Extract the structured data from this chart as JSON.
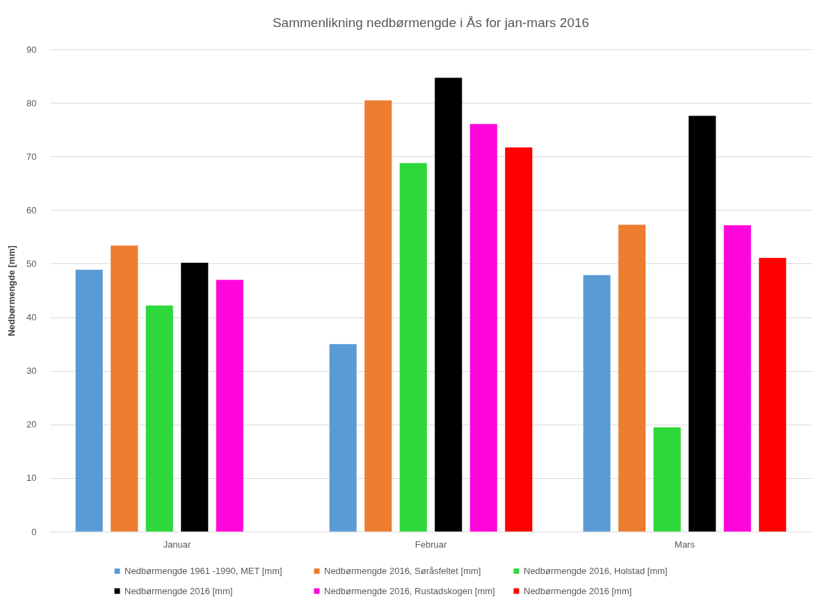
{
  "chart_data": {
    "type": "bar",
    "title": "Sammenlikning nedbørmengde i Ås for jan-mars 2016",
    "ylabel": "Nedbørmengde [mm]",
    "categories": [
      "Januar",
      "Februar",
      "Mars"
    ],
    "series": [
      {
        "name": "Nedbørmengde 1961 -1990, MET [mm]",
        "color": "#5b9bd5",
        "values": [
          48.9,
          35.0,
          47.9
        ]
      },
      {
        "name": "Nedbørmengde 2016, Søråsfeltet [mm]",
        "color": "#ed7d31",
        "values": [
          53.4,
          80.5,
          57.3
        ]
      },
      {
        "name": "Nedbørmengde 2016, Holstad [mm]",
        "color": "#2cd83a",
        "values": [
          42.2,
          68.8,
          19.5
        ]
      },
      {
        "name": "Nedbørmengde 2016 [mm]",
        "color": "#000000",
        "values": [
          50.2,
          84.7,
          77.6
        ]
      },
      {
        "name": "Nedbørmengde 2016, Rustadskogen [mm]",
        "color": "#ff07dc",
        "values": [
          47.0,
          76.1,
          57.2
        ]
      },
      {
        "name": "Nedbørmengde 2016 [mm]",
        "color": "#ff0000",
        "values": [
          null,
          71.7,
          51.1
        ]
      }
    ],
    "ylim": [
      0,
      90
    ],
    "yticks": [
      0,
      10,
      20,
      30,
      40,
      50,
      60,
      70,
      80,
      90
    ],
    "grid": "y",
    "legend": "bottom"
  }
}
